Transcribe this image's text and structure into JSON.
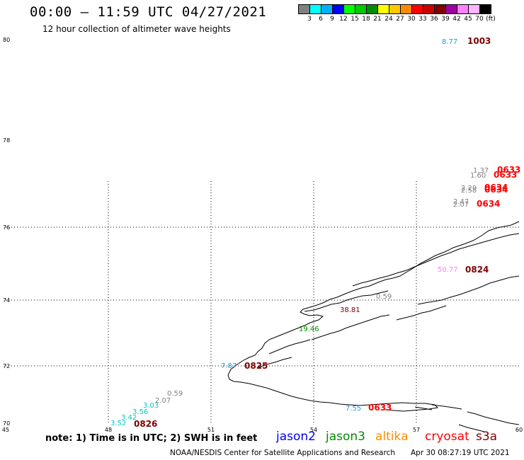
{
  "header": {
    "title": "00:00 – 11:59 UTC 04/27/2021",
    "subtitle": "12 hour collection of altimeter wave heights"
  },
  "colorbar": {
    "colors": [
      "#808080",
      "#00ffff",
      "#00b0ff",
      "#0000ff",
      "#00ff00",
      "#00c800",
      "#008c00",
      "#ffff00",
      "#ffc800",
      "#ff8c00",
      "#ff0000",
      "#c80000",
      "#800000",
      "#a000a0",
      "#ff80ff",
      "#ffb4ff",
      "#000000"
    ],
    "labels": [
      "3",
      "6",
      "9",
      "12",
      "15",
      "18",
      "21",
      "24",
      "27",
      "30",
      "33",
      "36",
      "39",
      "42",
      "45",
      "70",
      "(ft)"
    ]
  },
  "axes": {
    "lon_labels": [
      "45",
      "48",
      "51",
      "54",
      "57",
      "60"
    ],
    "lat_labels": [
      "80",
      "78",
      "76",
      "74",
      "72",
      "70"
    ]
  },
  "observations": [
    {
      "text": "8.77",
      "color": "#1aa0d0"
    },
    {
      "text": "1003",
      "color": "#800000"
    },
    {
      "text": "1.37",
      "color": "#808080"
    },
    {
      "text": "0633",
      "color": "#ff0000"
    },
    {
      "text": "1.60",
      "color": "#808080"
    },
    {
      "text": "0633",
      "color": "#ff0000"
    },
    {
      "text": "2.29",
      "color": "#808080"
    },
    {
      "text": "0634",
      "color": "#ff0000"
    },
    {
      "text": "2.58",
      "color": "#808080"
    },
    {
      "text": "0634",
      "color": "#ff0000"
    },
    {
      "text": "2.47",
      "color": "#808080"
    },
    {
      "text": "2.07",
      "color": "#808080"
    },
    {
      "text": "0634",
      "color": "#ff0000"
    },
    {
      "text": "50.77",
      "color": "#ff80ff"
    },
    {
      "text": "0824",
      "color": "#800000"
    },
    {
      "text": "0.59",
      "color": "#808080"
    },
    {
      "text": "38.81",
      "color": "#800000"
    },
    {
      "text": "19.46",
      "color": "#008c00"
    },
    {
      "text": "7.87",
      "color": "#1aa0d0"
    },
    {
      "text": "0825",
      "color": "#800000"
    },
    {
      "text": "0.59",
      "color": "#808080"
    },
    {
      "text": "2.07",
      "color": "#808080"
    },
    {
      "text": "3.03",
      "color": "#00c8c8"
    },
    {
      "text": "3.56",
      "color": "#00c8c8"
    },
    {
      "text": "3.42",
      "color": "#00c8c8"
    },
    {
      "text": "3.52",
      "color": "#00c8c8"
    },
    {
      "text": "0826",
      "color": "#800000"
    },
    {
      "text": "7.55",
      "color": "#1aa0d0"
    },
    {
      "text": "0633",
      "color": "#ff0000"
    }
  ],
  "note": "note: 1) Time is in UTC; 2) SWH is in feet",
  "satellites": [
    {
      "name": "jason2",
      "color": "#0000ff"
    },
    {
      "name": "jason3",
      "color": "#008c00"
    },
    {
      "name": "altika",
      "color": "#ff8c00"
    },
    {
      "name": "cryosat",
      "color": "#ff0000"
    },
    {
      "name": "s3a",
      "color": "#800000"
    }
  ],
  "footer": {
    "credit": "NOAA/NESDIS Center for Satellite Applications and Research",
    "timestamp": "Apr 30 08:27:19 UTC 2021"
  }
}
